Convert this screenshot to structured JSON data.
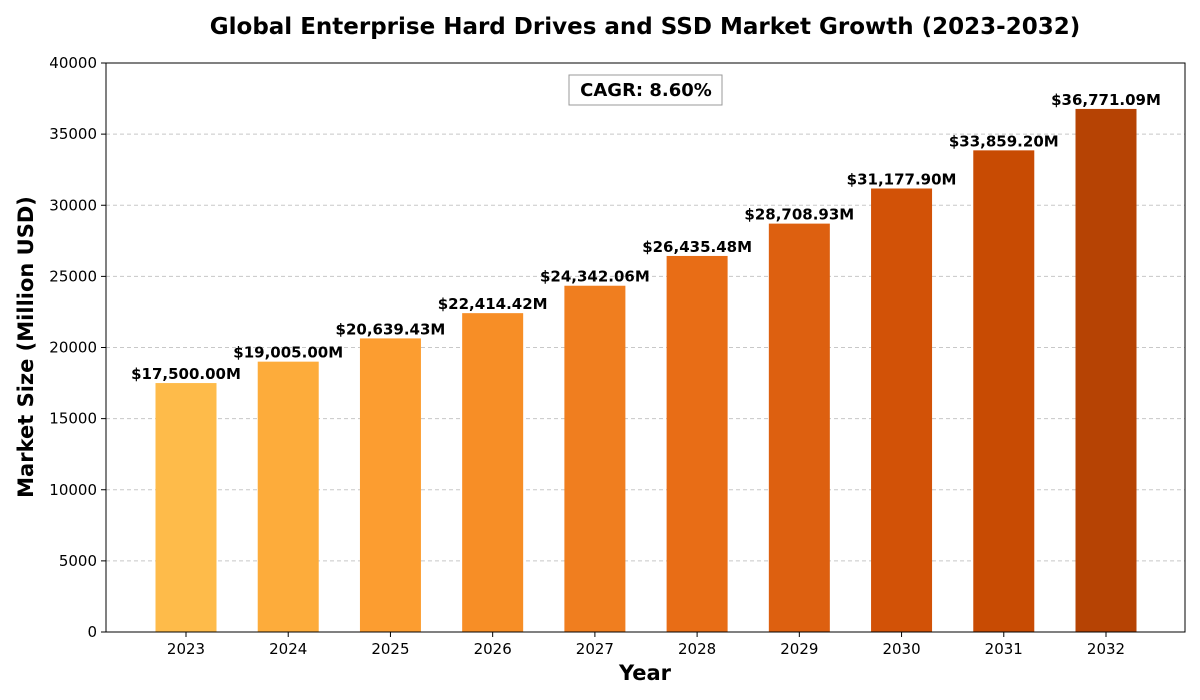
{
  "chart_data": {
    "type": "bar",
    "title": "Global Enterprise Hard Drives and SSD Market Growth (2023-2032)",
    "xlabel": "Year",
    "ylabel": "Market Size (Million USD)",
    "categories": [
      "2023",
      "2024",
      "2025",
      "2026",
      "2027",
      "2028",
      "2029",
      "2030",
      "2031",
      "2032"
    ],
    "values": [
      17500.0,
      19005.0,
      20639.43,
      22414.42,
      24342.06,
      26435.48,
      28708.93,
      31177.9,
      33859.2,
      36771.09
    ],
    "value_labels": [
      "$17,500.00M",
      "$19,005.00M",
      "$20,639.43M",
      "$22,414.42M",
      "$24,342.06M",
      "$26,435.48M",
      "$28,708.93M",
      "$31,177.90M",
      "$33,859.20M",
      "$36,771.09M"
    ],
    "colors": [
      "#FEBB4A",
      "#FDAC3B",
      "#FC9D30",
      "#F78E26",
      "#F07E1F",
      "#E86D16",
      "#DD6010",
      "#D25207",
      "#C84B03",
      "#B64304"
    ],
    "ylim": [
      0,
      40000
    ],
    "yticks": [
      0,
      5000,
      10000,
      15000,
      20000,
      25000,
      30000,
      35000,
      40000
    ],
    "grid": true,
    "annotation": "CAGR: 8.60%"
  }
}
